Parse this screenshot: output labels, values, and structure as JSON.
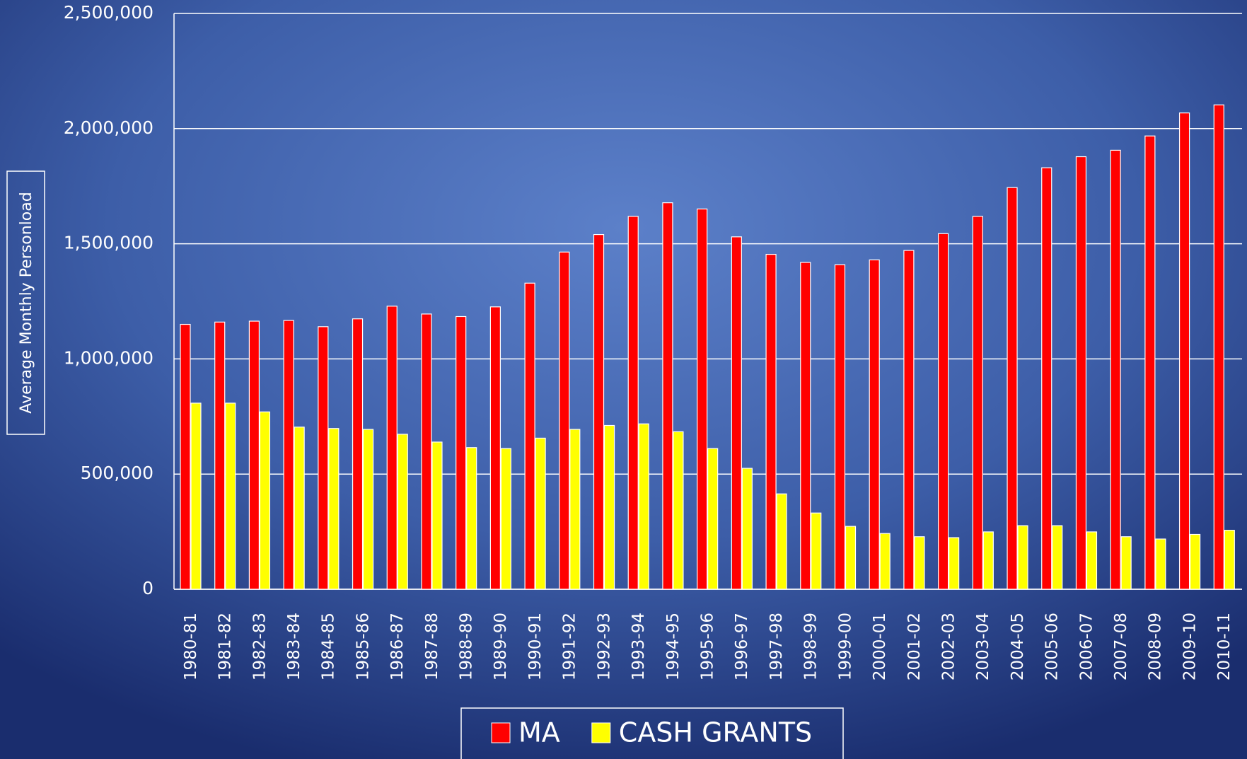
{
  "chart_data": {
    "type": "bar",
    "y_label": "Average Monthly Personload",
    "categories": [
      "1980-81",
      "1981-82",
      "1982-83",
      "1983-84",
      "1984-85",
      "1985-86",
      "1986-87",
      "1987-88",
      "1988-89",
      "1989-90",
      "1990-91",
      "1991-92",
      "1992-93",
      "1993-94",
      "1994-95",
      "1995-96",
      "1996-97",
      "1997-98",
      "1998-99",
      "1999-00",
      "2000-01",
      "2001-02",
      "2002-03",
      "2003-04",
      "2004-05",
      "2005-06",
      "2006-07",
      "2007-08",
      "2008-09",
      "2009-10",
      "2010-11"
    ],
    "series": [
      {
        "name": "MA",
        "color": "#ff0000",
        "values": [
          1150000,
          1160000,
          1164000,
          1167000,
          1140000,
          1174000,
          1229000,
          1195000,
          1184000,
          1226000,
          1329000,
          1464000,
          1540000,
          1619000,
          1678000,
          1651000,
          1530000,
          1454000,
          1419000,
          1409000,
          1430000,
          1471000,
          1544000,
          1619000,
          1744000,
          1830000,
          1878000,
          1906000,
          1968000,
          2068000,
          2103000
        ]
      },
      {
        "name": "CASH GRANTS",
        "color": "#ffff00",
        "values": [
          808000,
          808000,
          770000,
          704000,
          698000,
          694000,
          673000,
          639000,
          615000,
          611000,
          656000,
          694000,
          711000,
          718000,
          684000,
          611000,
          525000,
          414000,
          331000,
          273000,
          242000,
          228000,
          224000,
          249000,
          276000,
          276000,
          249000,
          228000,
          218000,
          238000,
          256000
        ]
      }
    ],
    "ylim": [
      0,
      2500000
    ],
    "yticks": [
      0,
      {
        "value": 500000,
        "label": "500,000"
      },
      {
        "value": 1000000,
        "label": "1,000,000"
      },
      {
        "value": 1500000,
        "label": "1,500,000"
      },
      {
        "value": 2000000,
        "label": "2,000,000"
      },
      {
        "value": 2500000,
        "label": "2,500,000"
      }
    ],
    "grid": true,
    "legend": "bottom"
  }
}
